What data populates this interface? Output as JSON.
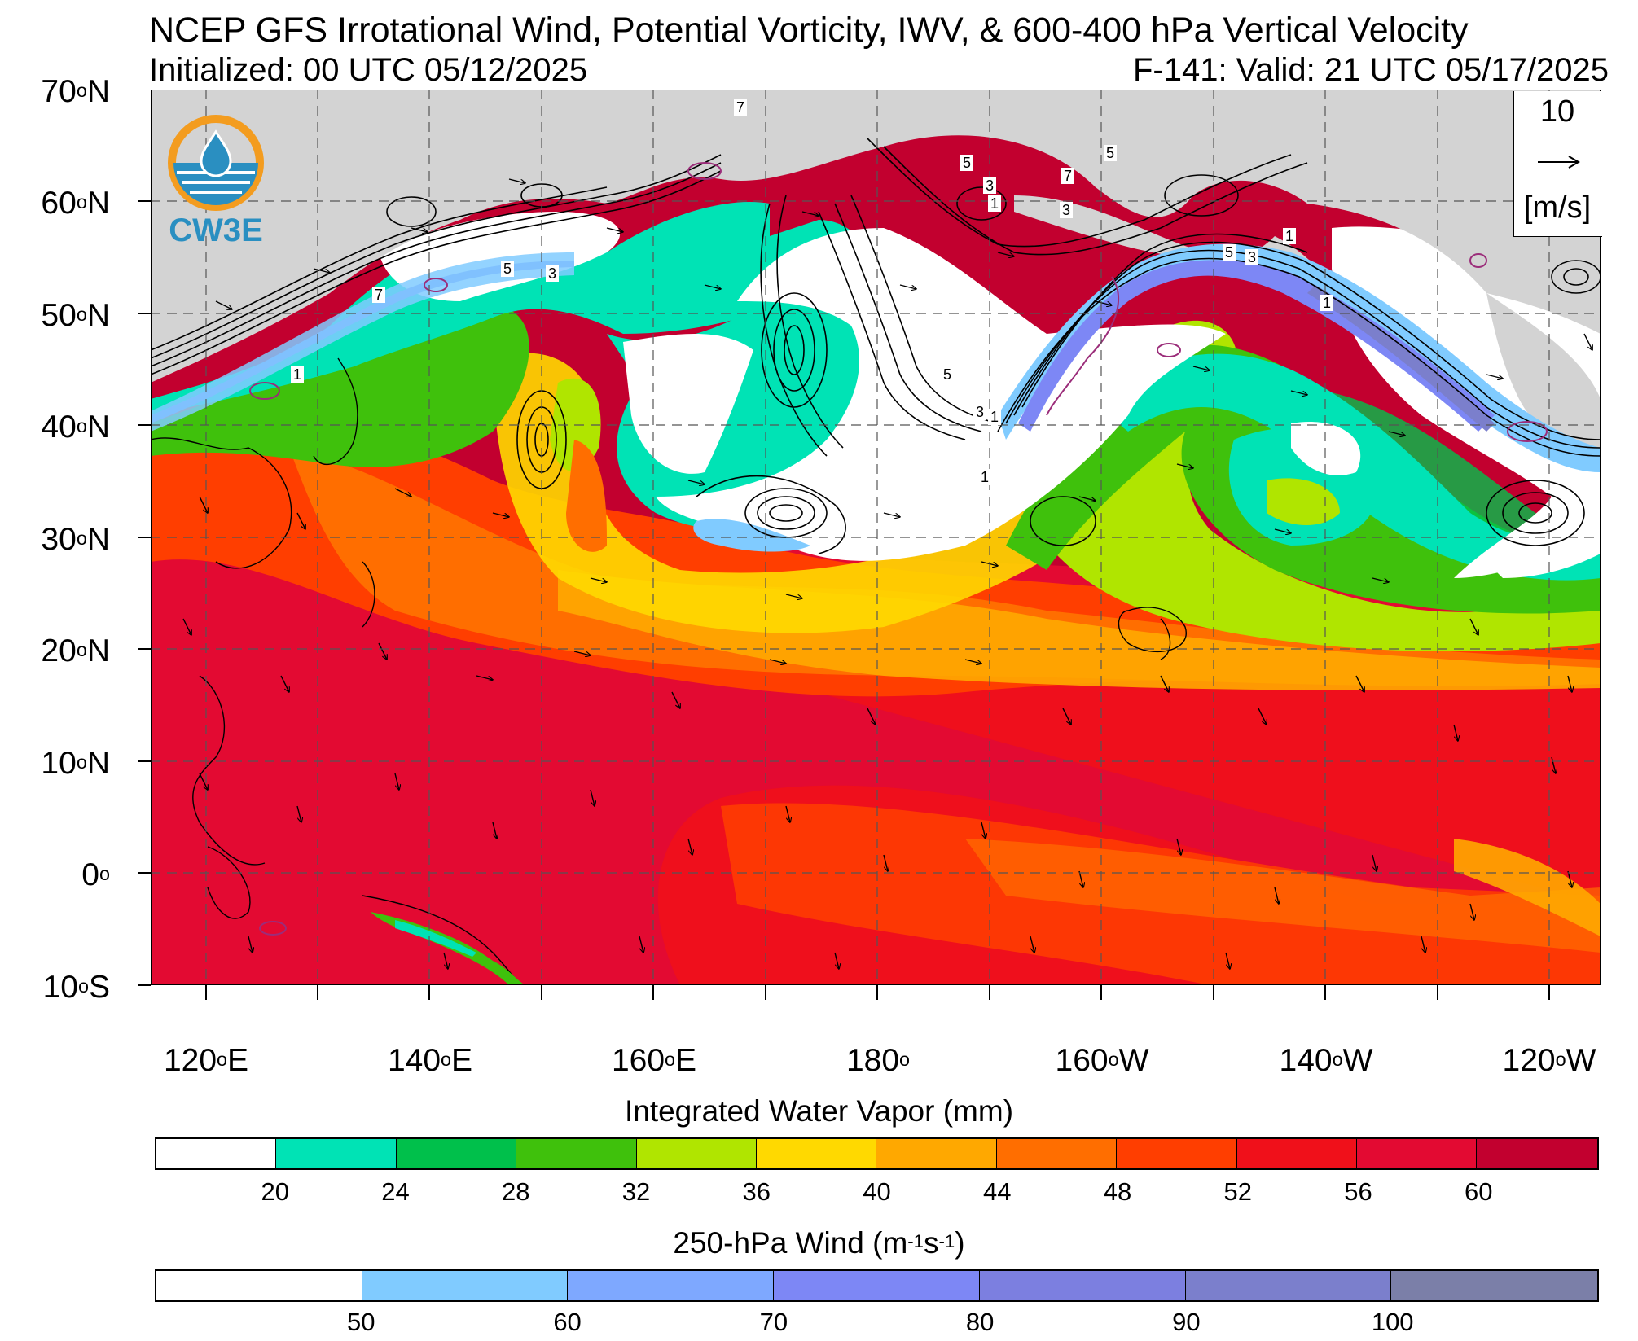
{
  "header": {
    "title": "NCEP GFS Irrotational Wind, Potential Vorticity, IWV, & 600-400 hPa Vertical Velocity",
    "initialized": "Initialized: 00 UTC 05/12/2025",
    "valid": "F-141: Valid: 21 UTC 05/17/2025"
  },
  "logo": {
    "text": "CW3E",
    "accent": "#f39c1f",
    "primary": "#2a8fc1"
  },
  "map": {
    "lat_labels": [
      "70",
      "60",
      "50",
      "40",
      "30",
      "20",
      "10",
      "0",
      "10"
    ],
    "lat_hemi": [
      "N",
      "N",
      "N",
      "N",
      "N",
      "N",
      "N",
      "",
      "S"
    ],
    "lon_labels": [
      "120",
      "140",
      "160",
      "180",
      "160",
      "140",
      "120"
    ],
    "lon_hemi": [
      "E",
      "E",
      "E",
      "",
      "W",
      "W",
      "W"
    ],
    "degree": "o",
    "land_color": "#d3d3d3",
    "contour_labels": [
      "7",
      "5",
      "3",
      "1",
      "5",
      "3",
      "1",
      "7",
      "5",
      "3",
      "1",
      "5",
      "3",
      "7",
      "1",
      "1",
      "5",
      "3",
      "1"
    ]
  },
  "reference_vector": {
    "value": "10",
    "unit": "[m/s]"
  },
  "colorbars": [
    {
      "title": "Integrated Water Vapor (mm)",
      "ticks": [
        "20",
        "24",
        "28",
        "32",
        "36",
        "40",
        "44",
        "48",
        "52",
        "56",
        "60"
      ],
      "colors": [
        "#ffffff",
        "#00e3b5",
        "#00c04b",
        "#3fc10c",
        "#b0e500",
        "#ffd900",
        "#ffa800",
        "#ff6e00",
        "#ff3e00",
        "#f0101a",
        "#e30a32",
        "#c2002f"
      ]
    },
    {
      "title_main": "250-hPa Wind (m",
      "title_exp1": "-1",
      "title_mid": "s",
      "title_exp2": "-1",
      "title_end": ")",
      "ticks": [
        "50",
        "60",
        "70",
        "80",
        "90",
        "100"
      ],
      "colors": [
        "#ffffff",
        "#80cbff",
        "#7ea8ff",
        "#7d87f5",
        "#7c7fe0",
        "#7b7fcc",
        "#7b7fa8"
      ]
    }
  ]
}
